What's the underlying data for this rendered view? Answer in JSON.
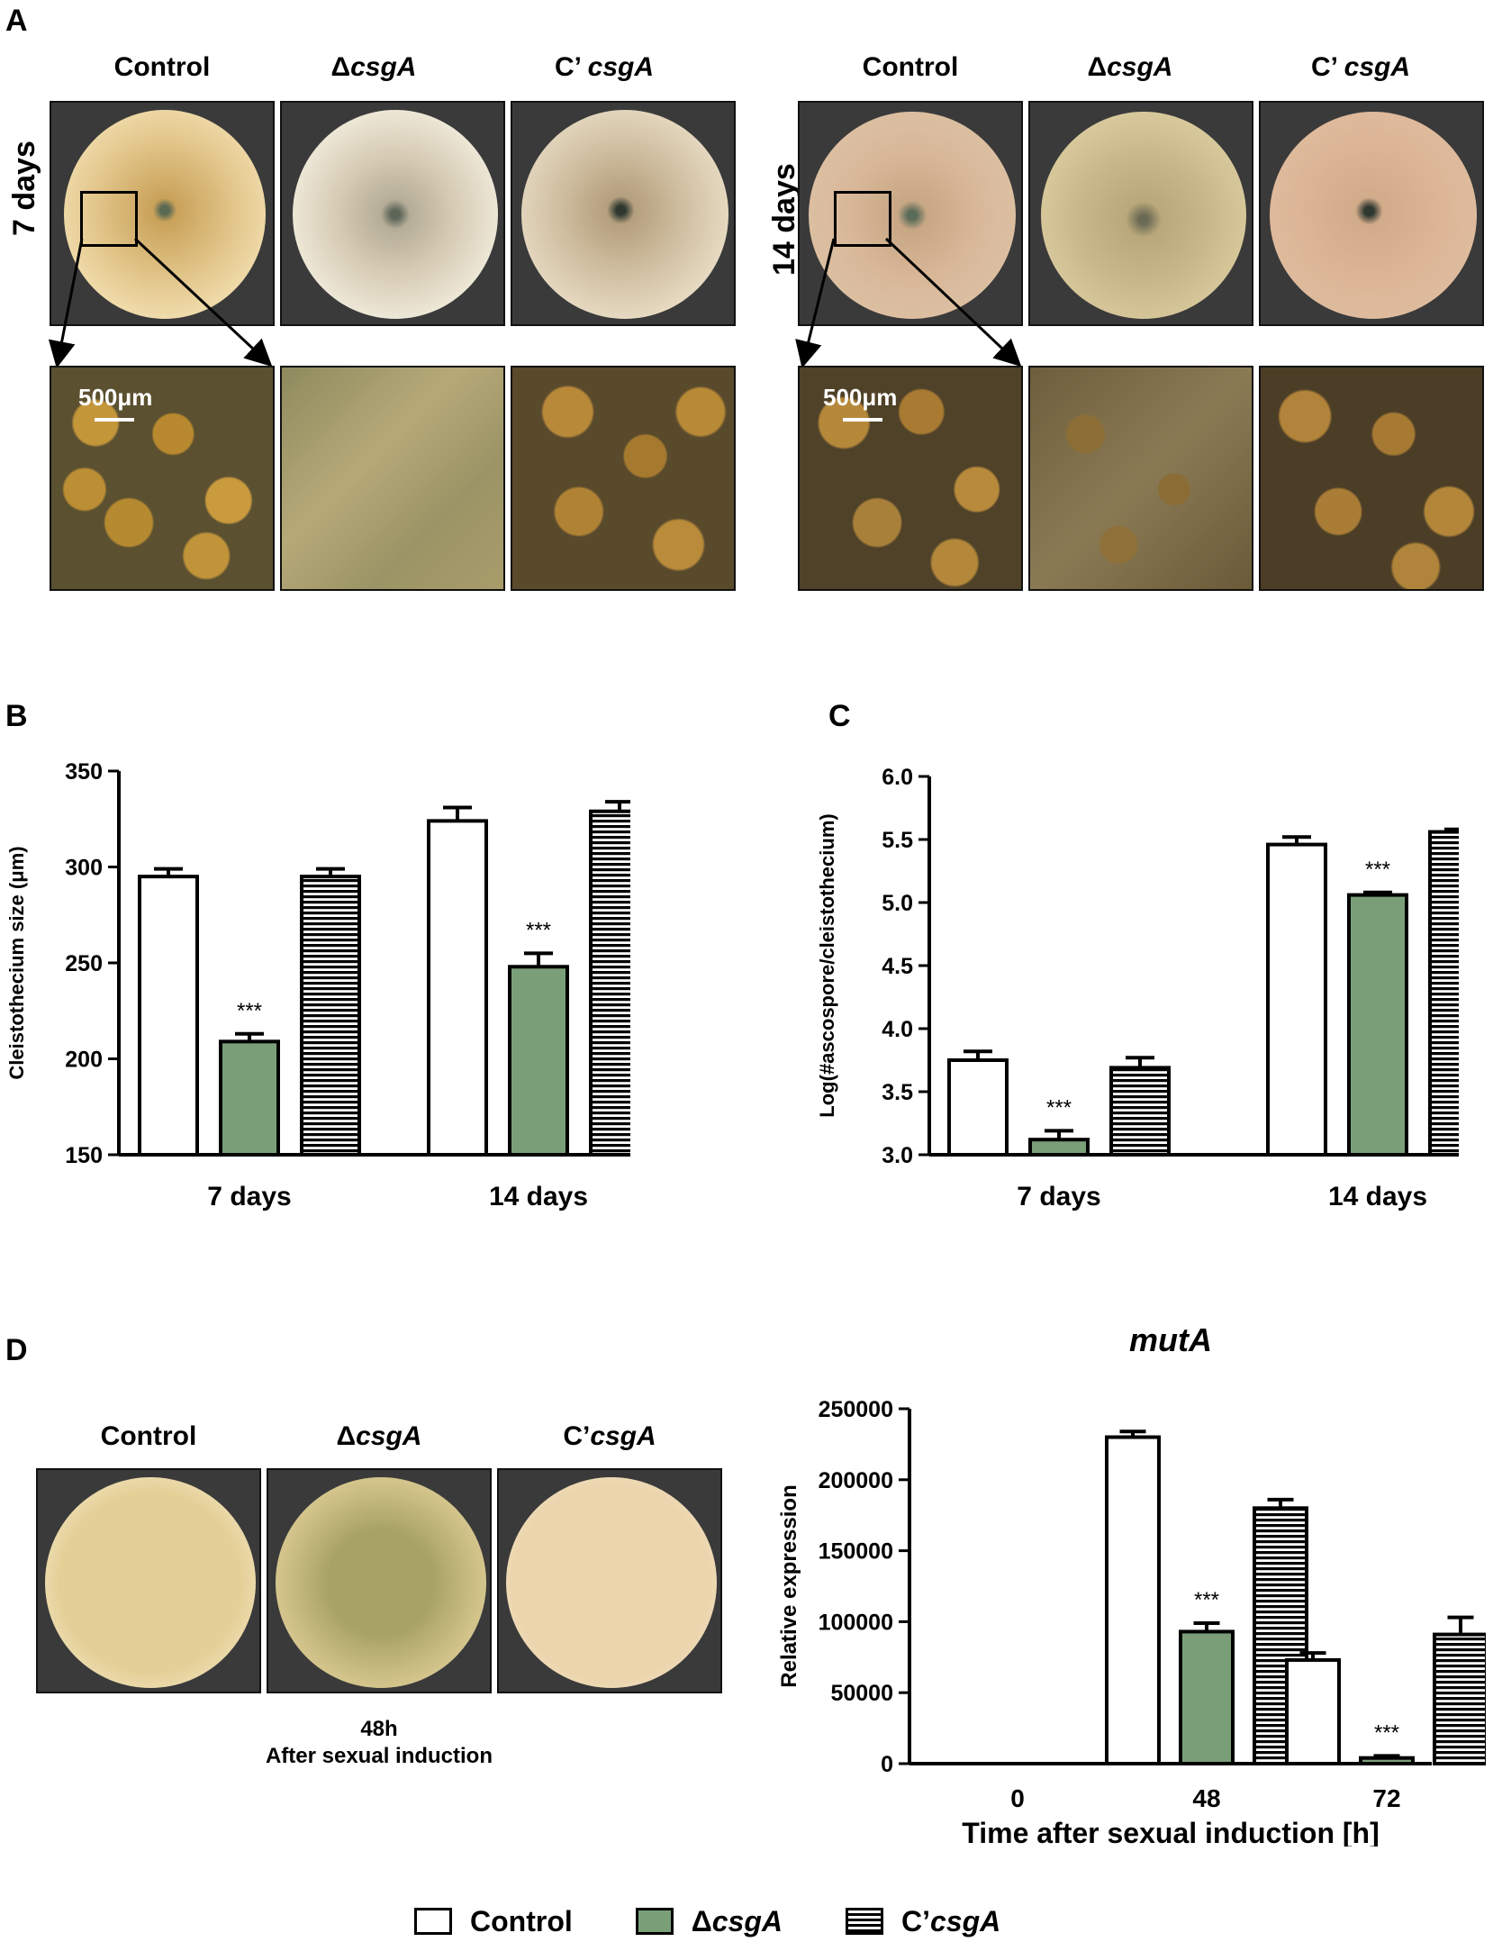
{
  "panel_a": {
    "letter": "A",
    "group_7": {
      "row_label": "7 days",
      "columns": [
        "Control",
        "Δ",
        "C’ "
      ],
      "gene": "csgA"
    },
    "group_14": {
      "row_label": "14 days",
      "columns": [
        "Control",
        "Δ",
        "C’ "
      ],
      "gene": "csgA"
    },
    "scale_bar": "500μm"
  },
  "panel_d": {
    "letter": "D",
    "columns": [
      "Control",
      "Δ",
      "C’"
    ],
    "gene": "csgA",
    "caption_line1": "48h",
    "caption_line2": "After sexual induction"
  },
  "colors": {
    "control": "#ffffff",
    "mutant": "#7a9f78",
    "complement": "#ffffff"
  },
  "legend": {
    "items": [
      {
        "label": "Control",
        "pattern": "empty"
      },
      {
        "prefix": "Δ",
        "gene": "csgA",
        "pattern": "green"
      },
      {
        "prefix": "C’",
        "gene": "csgA",
        "pattern": "horizontal-stripes"
      }
    ]
  },
  "chart_data": [
    {
      "id": "B",
      "letter": "B",
      "type": "bar",
      "ylabel": "Cleistothecium size (μm)",
      "xlabel": "",
      "categories": [
        "7 days",
        "14 days"
      ],
      "ylim": [
        150,
        350
      ],
      "yticks": [
        150,
        200,
        250,
        300,
        350
      ],
      "series": [
        {
          "values": [
            295,
            324
          ],
          "errors": [
            4,
            7
          ]
        },
        {
          "values": [
            209,
            248
          ],
          "errors": [
            4,
            7
          ]
        },
        {
          "values": [
            295,
            329
          ],
          "errors": [
            4,
            5
          ]
        }
      ],
      "annotations": [
        {
          "category": 0,
          "series": 1,
          "text": "***"
        },
        {
          "category": 1,
          "series": 1,
          "text": "***"
        }
      ]
    },
    {
      "id": "C",
      "letter": "C",
      "type": "bar",
      "ylabel": "Log(#ascospore/cleistothecium)",
      "xlabel": "",
      "categories": [
        "7 days",
        "14 days"
      ],
      "ylim": [
        3.0,
        6.0
      ],
      "yticks": [
        "3.0",
        "3.5",
        "4.0",
        "4.5",
        "5.0",
        "5.5",
        "6.0"
      ],
      "series": [
        {
          "values": [
            3.75,
            5.46
          ],
          "errors": [
            0.07,
            0.06
          ]
        },
        {
          "values": [
            3.12,
            5.06
          ],
          "errors": [
            0.07,
            0.02
          ]
        },
        {
          "values": [
            3.69,
            5.56
          ],
          "errors": [
            0.08,
            0.02
          ]
        }
      ],
      "annotations": [
        {
          "category": 0,
          "series": 1,
          "text": "***"
        },
        {
          "category": 1,
          "series": 1,
          "text": "***"
        }
      ]
    },
    {
      "id": "D",
      "type": "bar",
      "title": "mutA",
      "ylabel": "Relative expression",
      "xlabel": "Time after sexual induction [h]",
      "categories": [
        "0",
        "48",
        "72"
      ],
      "ylim": [
        0,
        250000
      ],
      "yticks": [
        0,
        50000,
        100000,
        150000,
        200000,
        250000
      ],
      "series": [
        {
          "values": [
            0,
            230000,
            73000
          ],
          "errors": [
            0,
            4000,
            5000
          ]
        },
        {
          "values": [
            0,
            93000,
            4000
          ],
          "errors": [
            0,
            6000,
            1500
          ]
        },
        {
          "values": [
            0,
            180000,
            91000
          ],
          "errors": [
            0,
            6000,
            12000
          ]
        }
      ],
      "annotations": [
        {
          "category": 1,
          "series": 1,
          "text": "***"
        },
        {
          "category": 2,
          "series": 1,
          "text": "***"
        }
      ]
    }
  ]
}
